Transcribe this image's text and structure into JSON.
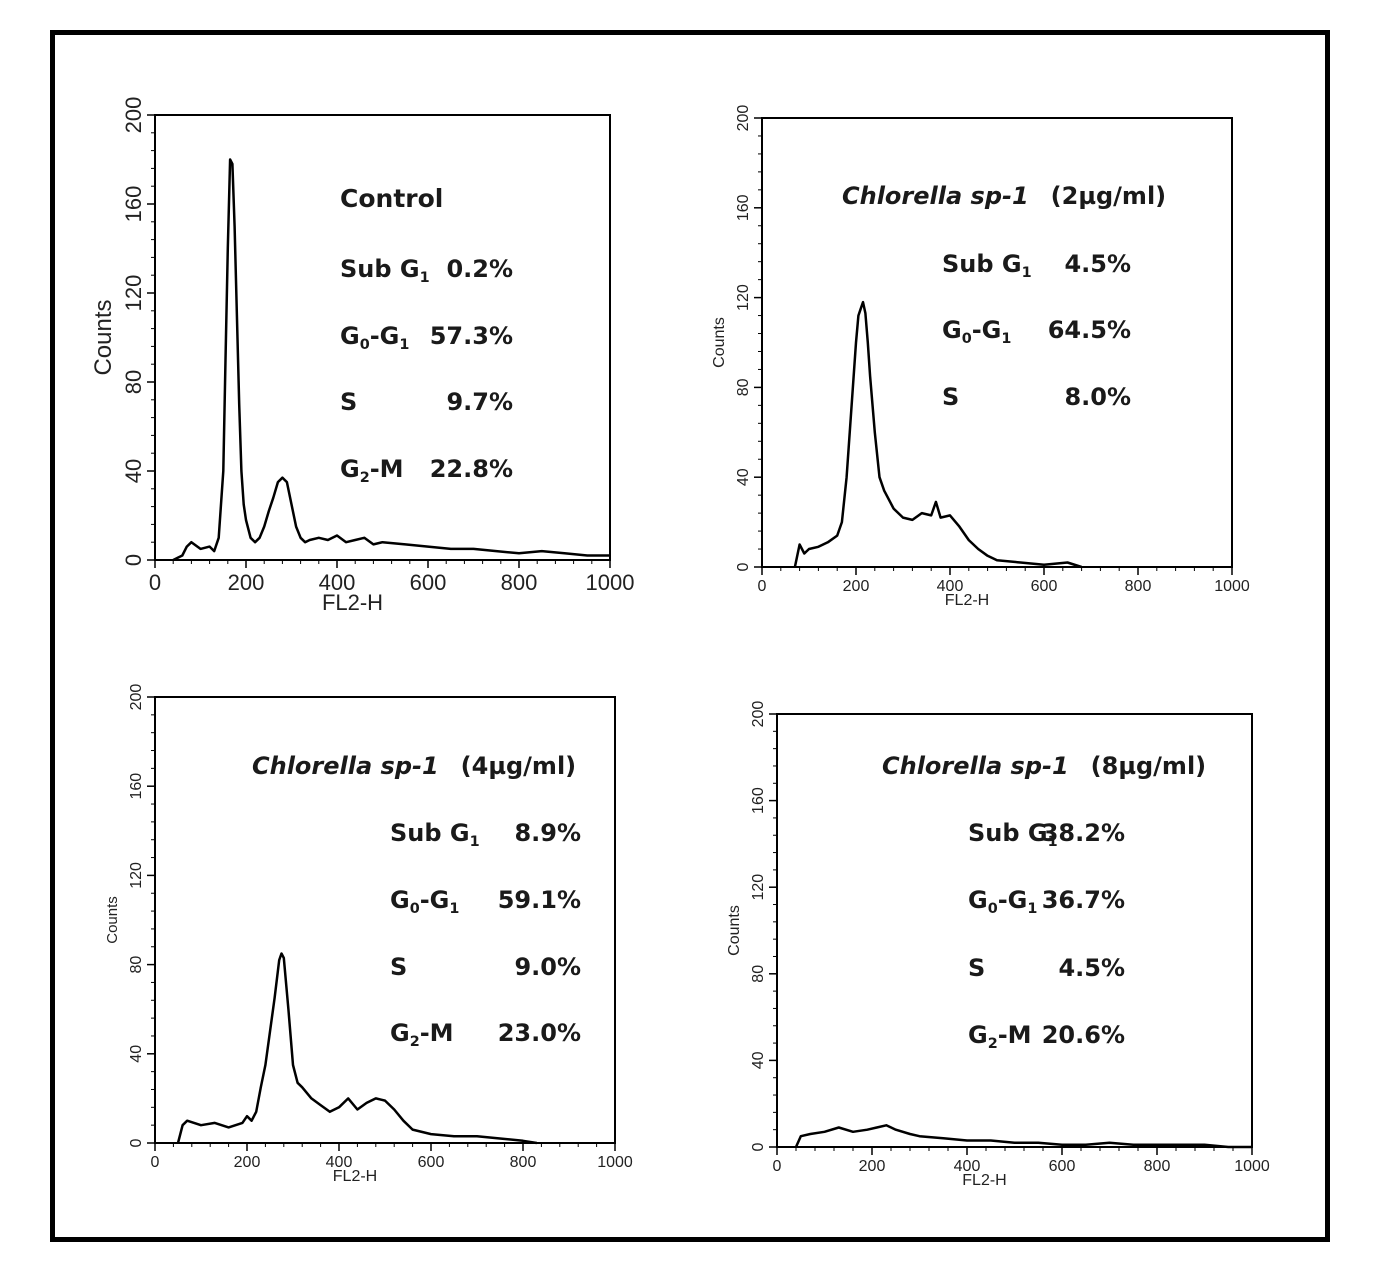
{
  "colors": {
    "frame": "#000000",
    "trace": "#000000",
    "text": "#1a1a1a"
  },
  "chart_data": [
    {
      "type": "line",
      "title": "Control",
      "xlabel": "FL2-H",
      "ylabel": "Counts",
      "xlim": [
        0,
        1000
      ],
      "ylim": [
        0,
        200
      ],
      "xticks": [
        "0",
        "200",
        "400",
        "600",
        "800",
        "1000"
      ],
      "yticks": [
        "0",
        "40",
        "80",
        "120",
        "160",
        "200"
      ],
      "stats": [
        {
          "label": "Sub G",
          "sub": "1",
          "value": "0.2%"
        },
        {
          "label": "G",
          "sub": "0",
          "label2": "-G",
          "sub2": "1",
          "value": "57.3%"
        },
        {
          "label": "S",
          "value": "9.7%"
        },
        {
          "label": "G",
          "sub": "2",
          "label2": "-M",
          "value": "22.8%"
        }
      ],
      "x": [
        40,
        60,
        70,
        80,
        100,
        120,
        130,
        140,
        150,
        155,
        160,
        165,
        170,
        175,
        180,
        185,
        190,
        195,
        200,
        210,
        220,
        230,
        240,
        250,
        260,
        270,
        280,
        290,
        300,
        310,
        320,
        330,
        340,
        360,
        380,
        400,
        420,
        440,
        460,
        480,
        500,
        550,
        600,
        650,
        700,
        750,
        800,
        850,
        900,
        950,
        1000
      ],
      "y": [
        0,
        2,
        6,
        8,
        5,
        6,
        4,
        10,
        40,
        90,
        140,
        180,
        178,
        150,
        110,
        70,
        40,
        25,
        18,
        10,
        8,
        10,
        15,
        22,
        28,
        35,
        37,
        35,
        25,
        15,
        10,
        8,
        9,
        10,
        9,
        11,
        8,
        9,
        10,
        7,
        8,
        7,
        6,
        5,
        5,
        4,
        3,
        4,
        3,
        2,
        2
      ]
    },
    {
      "type": "line",
      "title": "Chlorella sp-1",
      "dose": "(2µg/ml)",
      "xlabel": "FL2-H",
      "ylabel": "Counts",
      "xlim": [
        0,
        1000
      ],
      "ylim": [
        0,
        200
      ],
      "xticks": [
        "0",
        "200",
        "400",
        "600",
        "800",
        "1000"
      ],
      "yticks": [
        "0",
        "40",
        "80",
        "120",
        "160",
        "200"
      ],
      "stats": [
        {
          "label": "Sub G",
          "sub": "1",
          "value": "4.5%"
        },
        {
          "label": "G",
          "sub": "0",
          "label2": "-G",
          "sub2": "1",
          "value": "64.5%"
        },
        {
          "label": "S",
          "value": "8.0%"
        }
      ],
      "x": [
        70,
        80,
        90,
        100,
        120,
        140,
        160,
        170,
        180,
        190,
        200,
        205,
        210,
        215,
        220,
        225,
        230,
        240,
        250,
        260,
        280,
        300,
        320,
        340,
        360,
        370,
        380,
        400,
        420,
        440,
        460,
        480,
        500,
        550,
        600,
        650,
        680
      ],
      "y": [
        0,
        10,
        6,
        8,
        9,
        11,
        14,
        20,
        40,
        70,
        100,
        112,
        115,
        118,
        113,
        100,
        85,
        60,
        40,
        34,
        26,
        22,
        21,
        24,
        23,
        29,
        22,
        23,
        18,
        12,
        8,
        5,
        3,
        2,
        1,
        2,
        0
      ]
    },
    {
      "type": "line",
      "title": "Chlorella  sp-1",
      "dose": "(4µg/ml)",
      "xlabel": "FL2-H",
      "ylabel": "Counts",
      "xlim": [
        0,
        1000
      ],
      "ylim": [
        0,
        200
      ],
      "xticks": [
        "0",
        "200",
        "400",
        "600",
        "800",
        "1000"
      ],
      "yticks": [
        "0",
        "40",
        "80",
        "120",
        "160",
        "200"
      ],
      "stats": [
        {
          "label": "Sub G",
          "sub": "1",
          "value": "8.9%"
        },
        {
          "label": "G",
          "sub": "0",
          "label2": "-G",
          "sub2": "1",
          "value": "59.1%"
        },
        {
          "label": "S",
          "value": "9.0%"
        },
        {
          "label": "G",
          "sub": "2",
          "label2": "-M",
          "value": "23.0%"
        }
      ],
      "x": [
        50,
        60,
        70,
        100,
        130,
        160,
        190,
        200,
        210,
        220,
        230,
        240,
        250,
        260,
        270,
        275,
        280,
        290,
        300,
        310,
        320,
        340,
        360,
        380,
        400,
        420,
        440,
        460,
        480,
        500,
        520,
        540,
        560,
        600,
        650,
        700,
        750,
        800,
        830
      ],
      "y": [
        0,
        8,
        10,
        8,
        9,
        7,
        9,
        12,
        10,
        14,
        25,
        35,
        50,
        65,
        82,
        85,
        83,
        60,
        35,
        27,
        25,
        20,
        17,
        14,
        16,
        20,
        15,
        18,
        20,
        19,
        15,
        10,
        6,
        4,
        3,
        3,
        2,
        1,
        0
      ]
    },
    {
      "type": "line",
      "title": "Chlorella  sp-1",
      "dose": "(8µg/ml)",
      "xlabel": "FL2-H",
      "ylabel": "Counts",
      "xlim": [
        0,
        1000
      ],
      "ylim": [
        0,
        200
      ],
      "xticks": [
        "0",
        "200",
        "400",
        "600",
        "800",
        "1000"
      ],
      "yticks": [
        "0",
        "40",
        "80",
        "120",
        "160",
        "200"
      ],
      "stats": [
        {
          "label": "Sub G",
          "sub": "1",
          "value": "38.2%"
        },
        {
          "label": "G",
          "sub": "0",
          "label2": "-G",
          "sub2": "1",
          "value": "36.7%"
        },
        {
          "label": "S",
          "value": "4.5%"
        },
        {
          "label": "G",
          "sub": "2",
          "label2": "-M",
          "value": "20.6%"
        }
      ],
      "x": [
        40,
        50,
        70,
        100,
        130,
        160,
        190,
        210,
        230,
        250,
        280,
        300,
        350,
        400,
        450,
        500,
        550,
        600,
        650,
        700,
        750,
        800,
        850,
        900,
        950,
        1000
      ],
      "y": [
        0,
        5,
        6,
        7,
        9,
        7,
        8,
        9,
        10,
        8,
        6,
        5,
        4,
        3,
        3,
        2,
        2,
        1,
        1,
        2,
        1,
        1,
        1,
        1,
        0,
        0
      ]
    }
  ]
}
